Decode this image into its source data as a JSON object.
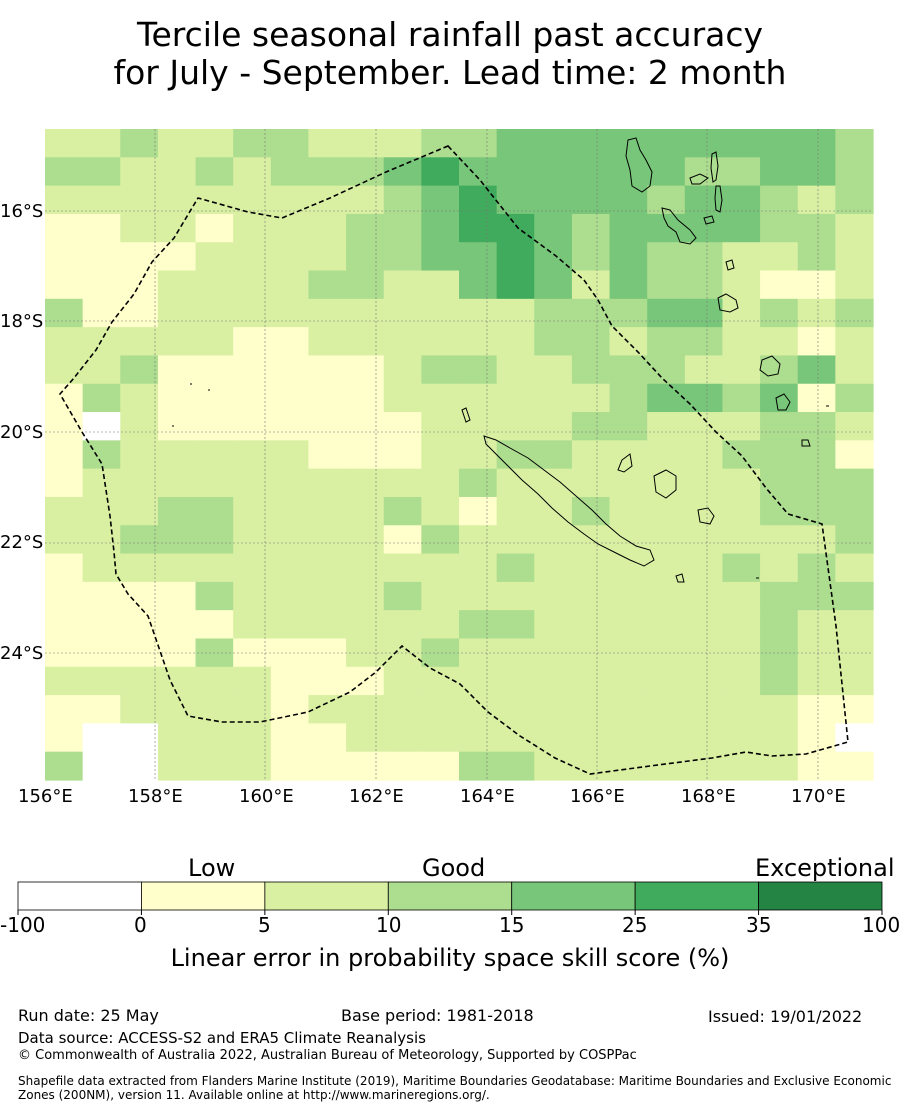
{
  "title": {
    "line1": "Tercile seasonal rainfall past accuracy",
    "line2": "for July - September. Lead time: 2 month"
  },
  "map": {
    "lon_labels": [
      "156°E",
      "158°E",
      "160°E",
      "162°E",
      "164°E",
      "166°E",
      "168°E",
      "170°E"
    ],
    "lat_labels": [
      "16°S",
      "18°S",
      "20°S",
      "22°S",
      "24°S"
    ],
    "grid": "dashed graticule every 2°",
    "boundary": "dashed EEZ boundary (New Caledonia)",
    "cell_classes_rows": [
      "2232233222334444444443",
      "3322323334544444433443",
      "2222222223454444344323",
      "1122122233455434444332",
      "1111222233445434332232",
      "1112222332245424332112",
      "3112222222222333442323",
      "2222211222222332332212",
      "2231111112332233322342",
      "1321111112222223443413",
      "1021111111222233222332",
      "1322222111223322223331",
      "1222222222232222222333",
      "2223322223212232222333",
      "2233322221322222222223",
      "1222222222223222223232",
      "1111322223222222222333",
      "1111122222233222222322",
      "1111311122322222222322",
      "2222221112222222222322",
      "1122221222222222222211",
      "1002221122222222222210",
      "3002221111133222222211"
    ]
  },
  "colorbar": {
    "category_labels": [
      "Low",
      "Good",
      "Exceptional"
    ],
    "ticks": [
      "-100",
      "0",
      "5",
      "10",
      "15",
      "25",
      "35",
      "100"
    ],
    "colors": [
      "#ffffff",
      "#ffffcc",
      "#d9f0a3",
      "#addd8e",
      "#78c679",
      "#41ab5d",
      "#238443"
    ],
    "axis_label": "Linear error in probability space skill score (%)"
  },
  "footer": {
    "run_date": "Run date: 25 May",
    "base_period": "Base period: 1981-2018",
    "issued": "Issued: 19/01/2022",
    "data_source": "Data source: ACCESS-S2 and ERA5 Climate Reanalysis",
    "copyright": "© Commonwealth of Australia 2022, Australian Bureau of Meteorology, Supported by COSPPac",
    "shapefile_line1": "Shapefile data extracted from Flanders Marine Institute (2019), Maritime Boundaries Geodatabase: Maritime Boundaries and Exclusive Economic",
    "shapefile_line2": "Zones (200NM), version 11. Available online at http://www.marineregions.org/."
  }
}
